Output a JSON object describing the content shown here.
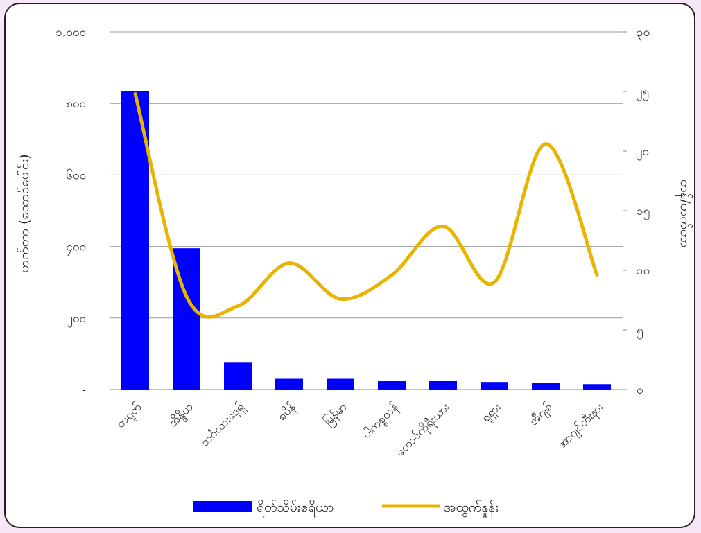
{
  "chart_data": {
    "type": "bar",
    "title": "",
    "categories": [
      "တရုတ်",
      "အိန္ဒိယ",
      "ဘင်္ဂလားဒေ့ရှ်",
      "စပိန်",
      "မြန်မာ",
      "ပါကစ္စတန်",
      "တောင်ကိုရီးယား",
      "ရုရှား",
      "အီဂျစ်",
      "အာဂျင်တီးနား"
    ],
    "ylabel": "ဟက်တာ (ထောင်ပေါင်း)",
    "y2label": "တန်/ဟက်တာ",
    "ylim": [
      0,
      1000
    ],
    "y2lim": [
      0,
      30
    ],
    "y_ticks": [
      "-",
      "၂၀၀",
      "၄၀၀",
      "၆၀၀",
      "၈၀၀",
      "၁,၀၀၀"
    ],
    "y2_ticks": [
      "၀",
      "၅",
      "၁၀",
      "၁၅",
      "၂၀",
      "၂၅",
      "၃၀"
    ],
    "grid": true,
    "legend_position": "bottom",
    "series": [
      {
        "name": "ရိတ်သိမ်းဧရိယာ",
        "type": "bar",
        "axis": "left",
        "color": "#0000ff",
        "values": [
          835,
          395,
          75,
          30,
          30,
          24,
          24,
          21,
          18,
          15
        ]
      },
      {
        "name": "အထွက်နှုန်း",
        "type": "line",
        "axis": "right",
        "color": "#e8b400",
        "values": [
          24.8,
          7.8,
          7.0,
          10.6,
          7.6,
          9.6,
          13.7,
          9.0,
          20.6,
          9.6
        ]
      }
    ]
  }
}
